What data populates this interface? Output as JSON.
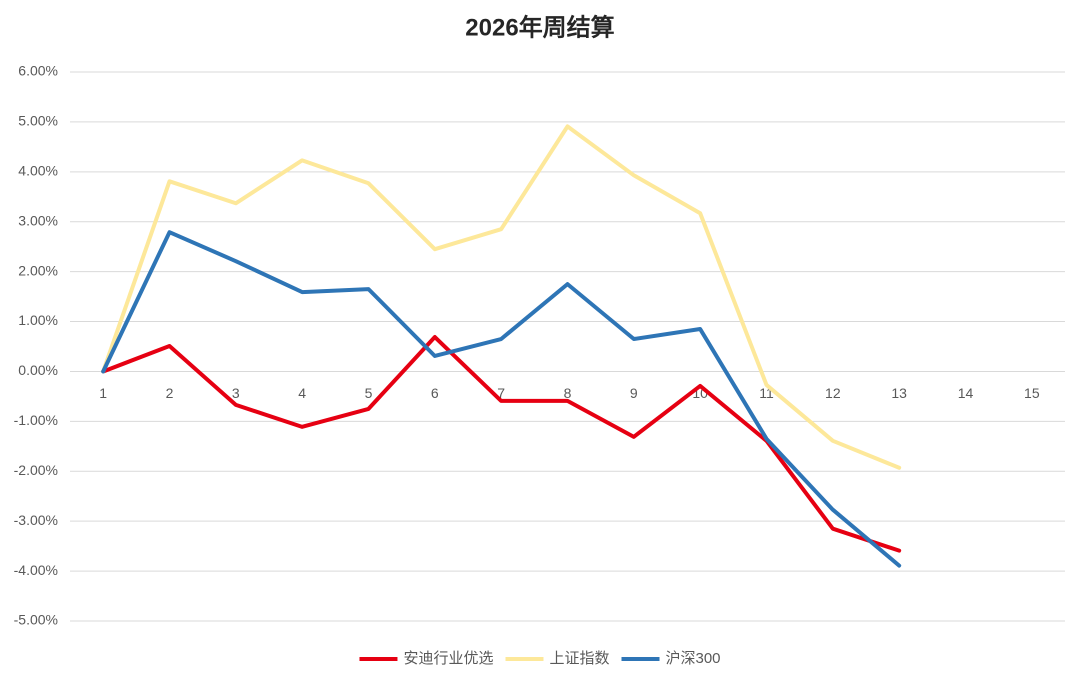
{
  "chart_data": {
    "type": "line",
    "title": "2026年周结算",
    "categories": [
      "1",
      "2",
      "3",
      "4",
      "5",
      "6",
      "7",
      "8",
      "9",
      "10",
      "11",
      "12",
      "13",
      "14",
      "15"
    ],
    "series": [
      {
        "name": "安迪行业优选",
        "color": "#e60012",
        "values": [
          0,
          0.51,
          -0.67,
          -1.11,
          -0.75,
          0.69,
          -0.59,
          -0.59,
          -1.31,
          -0.29,
          -1.39,
          -3.15,
          -3.59,
          null,
          null
        ]
      },
      {
        "name": "上证指数",
        "color": "#fde89a",
        "values": [
          0,
          3.81,
          3.37,
          4.23,
          3.77,
          2.45,
          2.85,
          4.91,
          3.93,
          3.17,
          -0.27,
          -1.39,
          -1.93,
          null,
          null
        ]
      },
      {
        "name": "沪深300",
        "color": "#2e75b6",
        "values": [
          0,
          2.79,
          2.21,
          1.59,
          1.65,
          0.31,
          0.65,
          1.75,
          0.65,
          0.85,
          -1.35,
          -2.77,
          -3.89,
          null,
          null
        ]
      }
    ],
    "ylim": [
      -5,
      6
    ],
    "yticks": [
      {
        "value": -5,
        "label": "-5.00%"
      },
      {
        "value": -4,
        "label": "-4.00%"
      },
      {
        "value": -3,
        "label": "-3.00%"
      },
      {
        "value": -2,
        "label": "-2.00%"
      },
      {
        "value": -1,
        "label": "-1.00%"
      },
      {
        "value": 0,
        "label": "0.00%"
      },
      {
        "value": 1,
        "label": "1.00%"
      },
      {
        "value": 2,
        "label": "2.00%"
      },
      {
        "value": 3,
        "label": "3.00%"
      },
      {
        "value": 4,
        "label": "4.00%"
      },
      {
        "value": 5,
        "label": "5.00%"
      },
      {
        "value": 6,
        "label": "6.00%"
      }
    ],
    "grid": true,
    "legend": "bottom"
  }
}
